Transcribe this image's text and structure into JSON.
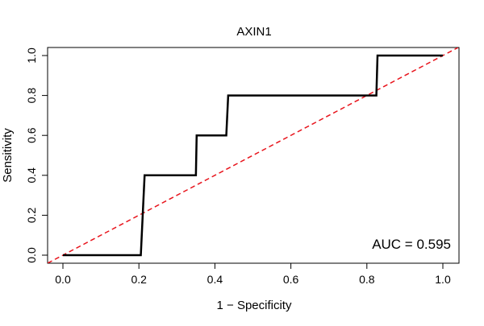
{
  "chart_data": {
    "type": "line",
    "title": "AXIN1",
    "xlabel": "1 − Specificity",
    "ylabel": "Sensitivity",
    "xlim": [
      0,
      1
    ],
    "ylim": [
      0,
      1
    ],
    "x_ticks": [
      "0.0",
      "0.2",
      "0.4",
      "0.6",
      "0.8",
      "1.0"
    ],
    "y_ticks": [
      "0.0",
      "0.2",
      "0.4",
      "0.6",
      "0.8",
      "1.0"
    ],
    "grid": false,
    "series": [
      {
        "kind": "roc-curve",
        "color": "#000000",
        "points": [
          [
            0.0,
            0.0
          ],
          [
            0.205,
            0.0
          ],
          [
            0.215,
            0.4
          ],
          [
            0.35,
            0.4
          ],
          [
            0.352,
            0.6
          ],
          [
            0.43,
            0.6
          ],
          [
            0.435,
            0.8
          ],
          [
            0.825,
            0.8
          ],
          [
            0.828,
            1.0
          ],
          [
            1.0,
            1.0
          ]
        ]
      },
      {
        "kind": "reference-diagonal",
        "color": "#e8141c",
        "dashed": true,
        "points": [
          [
            -0.04,
            -0.04
          ],
          [
            1.04,
            1.04
          ]
        ]
      }
    ],
    "annotation": {
      "text": "AUC = 0.595",
      "placement": "bottom-right"
    }
  }
}
